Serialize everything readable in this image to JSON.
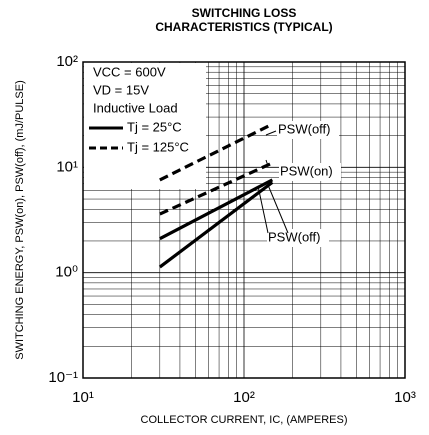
{
  "chart_data": {
    "type": "line",
    "title": [
      "SWITCHING LOSS",
      "CHARACTERISTICS (TYPICAL)"
    ],
    "x_label": "COLLECTOR CURRENT, IC, (AMPERES)",
    "y_label": "SWITCHING ENERGY, PSW(on), PSW(off), (mJ/PULSE)",
    "log_x": true,
    "log_y": true,
    "grid": true,
    "minor_grid": true,
    "xlim": [
      10,
      1000
    ],
    "xticks": [
      {
        "value": 10,
        "label": "10¹"
      },
      {
        "value": 100,
        "label": "10²"
      },
      {
        "value": 1000,
        "label": "10³"
      }
    ],
    "ylim": [
      0.1,
      100
    ],
    "yticks": [
      {
        "value": 0.1,
        "label": "10⁻¹"
      },
      {
        "value": 1,
        "label": "10⁰"
      },
      {
        "value": 10,
        "label": "10¹"
      },
      {
        "value": 100,
        "label": "10²"
      }
    ],
    "notes": [
      "VCC = 600V",
      "VD = 15V",
      "Inductive Load"
    ],
    "legend": [
      {
        "name": "Tj = 25°C",
        "dash": "solid"
      },
      {
        "name": "Tj = 125°C",
        "dash": "dashed"
      }
    ],
    "color": "#000000",
    "series": [
      {
        "legend": 0,
        "x": [
          30,
          150
        ],
        "values": [
          2.1,
          7.6
        ]
      },
      {
        "legend": 0,
        "x": [
          30,
          150
        ],
        "values": [
          1.13,
          7.2
        ]
      },
      {
        "legend": 1,
        "x": [
          30,
          150
        ],
        "values": [
          7.6,
          25.7
        ]
      },
      {
        "legend": 1,
        "x": [
          30,
          150
        ],
        "values": [
          3.6,
          11
        ]
      }
    ],
    "annotations": [
      "PSW(off)",
      "PSW(on)",
      "PSW(off)"
    ]
  }
}
